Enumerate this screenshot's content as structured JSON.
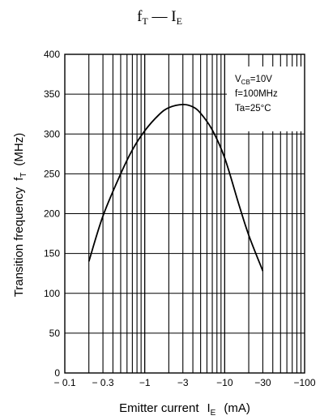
{
  "chart_data": {
    "type": "line",
    "title": {
      "main": "f",
      "main_sub": "T",
      "dash": " — ",
      "second": "I",
      "second_sub": "E"
    },
    "xlabel": {
      "text": "Emitter current",
      "symbol": "I",
      "symbol_sub": "E",
      "unit": "(mA)"
    },
    "ylabel": {
      "text": "Transition frequency",
      "symbol": "f",
      "symbol_sub": "T",
      "unit": "(MHz)"
    },
    "x_scale": "log",
    "xlim": [
      -0.1,
      -100
    ],
    "ylim": [
      0,
      400
    ],
    "x_ticks": [
      {
        "value": -0.1,
        "label": "− 0.1"
      },
      {
        "value": -0.3,
        "label": "− 0.3"
      },
      {
        "value": -1,
        "label": "−1"
      },
      {
        "value": -3,
        "label": "−3"
      },
      {
        "value": -10,
        "label": "−10"
      },
      {
        "value": -30,
        "label": "−30"
      },
      {
        "value": -100,
        "label": "−100"
      }
    ],
    "y_ticks": [
      0,
      50,
      100,
      150,
      200,
      250,
      300,
      350,
      400
    ],
    "grid": true,
    "annotation": {
      "position": "top-right",
      "lines": [
        {
          "main": "V",
          "sub": "CB",
          "rest": "=10V"
        },
        {
          "main": "f=100MHz",
          "sub": "",
          "rest": ""
        },
        {
          "main": "Ta=25°C",
          "sub": "",
          "rest": ""
        }
      ]
    },
    "series": [
      {
        "x": [
          -0.2,
          -0.3,
          -0.5,
          -0.7,
          -1,
          -1.5,
          -2,
          -3,
          -4,
          -5,
          -7,
          -10,
          -15,
          -20,
          -30
        ],
        "y": [
          140,
          197,
          250,
          280,
          304,
          324,
          333,
          337,
          334,
          326,
          305,
          270,
          212,
          173,
          128
        ]
      }
    ],
    "colors": {
      "line": "#000000",
      "grid": "#000000",
      "background": "#ffffff"
    }
  }
}
